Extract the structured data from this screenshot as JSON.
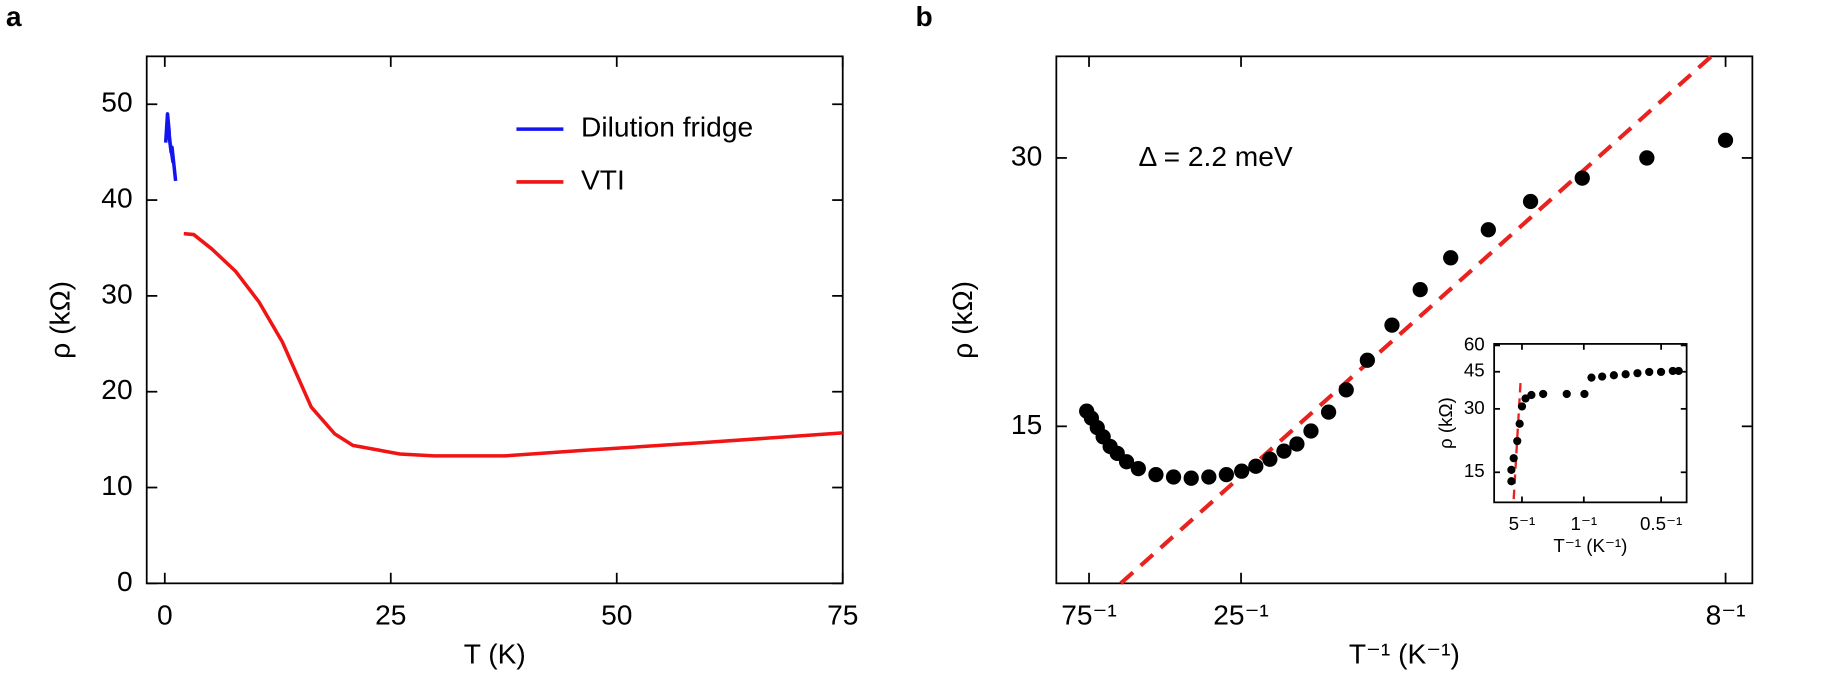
{
  "chart_data": [
    {
      "type": "line",
      "panel_label": "a",
      "x_label": "T (K)",
      "y_label": "ρ (kΩ)",
      "xlim": [
        -2,
        75
      ],
      "xticks": [
        0,
        25,
        50,
        75
      ],
      "ylim": [
        0,
        55
      ],
      "yticks": [
        0,
        10,
        20,
        30,
        40,
        50
      ],
      "legend": "upper right",
      "series": [
        {
          "name": "Dilution fridge",
          "color": "#1414f0",
          "x": [
            0.1,
            0.3,
            0.5,
            0.3,
            0.7,
            0.5,
            0.9,
            0.8,
            1.2
          ],
          "values": [
            46,
            49,
            47,
            48.5,
            45,
            46.5,
            44,
            45.5,
            42
          ]
        },
        {
          "name": "VTI",
          "color": "#f01414",
          "x": [
            2.1,
            3.2,
            5.2,
            7.8,
            10.4,
            13,
            16.2,
            18.8,
            20.8,
            26,
            29.8,
            37.6,
            46.7,
            59.7,
            75
          ],
          "values": [
            36.5,
            36.4,
            34.9,
            32.6,
            29.4,
            25.2,
            18.4,
            15.6,
            14.4,
            13.5,
            13.3,
            13.3,
            13.9,
            14.7,
            15.7
          ]
        }
      ]
    },
    {
      "type": "scatter",
      "panel_label": "b",
      "x_label": "T⁻¹ (K⁻¹)",
      "y_label": "ρ (kΩ)",
      "annotation": "Δ = 2.2 meV",
      "yscale": "log",
      "xlim": [
        0.0076,
        0.1297
      ],
      "xticks": [
        {
          "value": 0.013333,
          "label": "75⁻¹"
        },
        {
          "value": 0.04,
          "label": "25⁻¹"
        },
        {
          "value": 0.125,
          "label": "8⁻¹"
        }
      ],
      "ylim": [
        10,
        39
      ],
      "yticks": [
        15,
        30
      ],
      "color": "#000000",
      "x": [
        0.01292,
        0.01375,
        0.01478,
        0.01581,
        0.01704,
        0.01828,
        0.01992,
        0.02198,
        0.02507,
        0.02816,
        0.03126,
        0.03435,
        0.03743,
        0.04011,
        0.04259,
        0.04506,
        0.04753,
        0.0498,
        0.05227,
        0.05536,
        0.05845,
        0.06216,
        0.06648,
        0.07143,
        0.07678,
        0.08338,
        0.09079,
        0.09986,
        0.11119,
        0.12499
      ],
      "values": [
        15.6,
        15.32,
        14.95,
        14.6,
        14.24,
        13.99,
        13.69,
        13.45,
        13.24,
        13.16,
        13.12,
        13.16,
        13.24,
        13.36,
        13.53,
        13.78,
        14.07,
        14.33,
        14.82,
        15.56,
        16.48,
        17.79,
        19.48,
        21.35,
        23.18,
        24.92,
        26.81,
        28.48,
        30,
        31.4
      ],
      "fit": {
        "color": "#e8221f",
        "dashed": true,
        "x": [
          0.0189,
          0.1225
        ],
        "values": [
          10,
          39
        ]
      }
    },
    {
      "type": "scatter",
      "x_label": "T⁻¹ (K⁻¹)",
      "y_label": "ρ (kΩ)",
      "yscale": "log",
      "xlim": [
        -0.16,
        2.33
      ],
      "xticks": [
        {
          "value": 0.2,
          "label": "5⁻¹"
        },
        {
          "value": 1,
          "label": "1⁻¹"
        },
        {
          "value": 2,
          "label": "0.5⁻¹"
        }
      ],
      "ylim": [
        10.8,
        61
      ],
      "yticks": [
        15,
        30,
        45,
        60
      ],
      "color": "#000000",
      "x": [
        0.063,
        0.063,
        0.093,
        0.139,
        0.17,
        0.2,
        0.246,
        0.322,
        0.474,
        0.779,
        1.008,
        1.099,
        1.237,
        1.389,
        1.541,
        1.694,
        1.846,
        1.999,
        2.151,
        2.227
      ],
      "values": [
        13.6,
        15.4,
        17.5,
        21.1,
        25.5,
        30.8,
        33.6,
        34.9,
        35.3,
        35.3,
        35.3,
        42.2,
        42.7,
        43.3,
        43.8,
        44.3,
        44.9,
        44.9,
        45.4,
        45.4
      ],
      "fit": {
        "color": "#e8221f",
        "dashed": true,
        "x": [
          0.093,
          0.185
        ],
        "values": [
          11.2,
          42.2
        ]
      }
    }
  ]
}
